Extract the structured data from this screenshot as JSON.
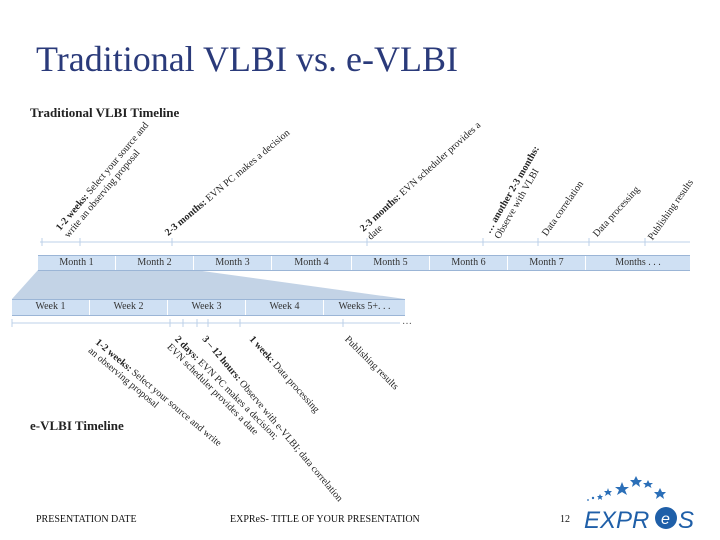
{
  "title": "Traditional VLBI vs. e-VLBI",
  "traditional": {
    "heading": "Traditional VLBI Timeline",
    "steps": [
      {
        "bold": "1-2 weeks:",
        "line1": " Select your source and",
        "line2": "write an observing proposal"
      },
      {
        "bold": "2-3 months:",
        "line1": " EVN PC makes a decision",
        "line2": ""
      },
      {
        "bold": "2-3 months:",
        "line1": " EVN scheduler provides a",
        "line2": "date"
      },
      {
        "bold": "… another 2-3 months:",
        "line1": "",
        "line2": "Observe with VLBI"
      },
      {
        "bold": "",
        "line1": "Data correlation",
        "line2": ""
      },
      {
        "bold": "",
        "line1": "Data processing",
        "line2": ""
      },
      {
        "bold": "",
        "line1": "Publishing results",
        "line2": ""
      }
    ],
    "months": [
      "Month 1",
      "Month 2",
      "Month 3",
      "Month 4",
      "Month 5",
      "Month 6",
      "Month 7",
      "Months . . ."
    ]
  },
  "evlbi": {
    "heading": "e-VLBI Timeline",
    "weeks": [
      "Week 1",
      "Week 2",
      "Week 3",
      "Week 4",
      "Weeks 5+. . ."
    ],
    "ellipsis": "…",
    "steps": [
      {
        "bold": "1-2 weeks:",
        "line1": " Select your source and write",
        "line2": "an observing proposal"
      },
      {
        "bold": "2 days:",
        "line1": " EVN PC makes a decision;",
        "line2": "EVN scheduler provides a date"
      },
      {
        "bold": "3 – 12 hours:",
        "line1": " Observe with e-VLBI; data correlation",
        "line2": ""
      },
      {
        "bold": "1 week:",
        "line1": " Data processing",
        "line2": ""
      },
      {
        "bold": "",
        "line1": "Publishing results",
        "line2": ""
      }
    ]
  },
  "footer": {
    "date": "PRESENTATION DATE",
    "center": "EXPReS- TITLE OF YOUR PRESENTATION",
    "page": "12",
    "logo_text": "EXPReS",
    "logo_colors": {
      "blue": "#1f5fa8",
      "star": "#2b6fb8"
    }
  }
}
